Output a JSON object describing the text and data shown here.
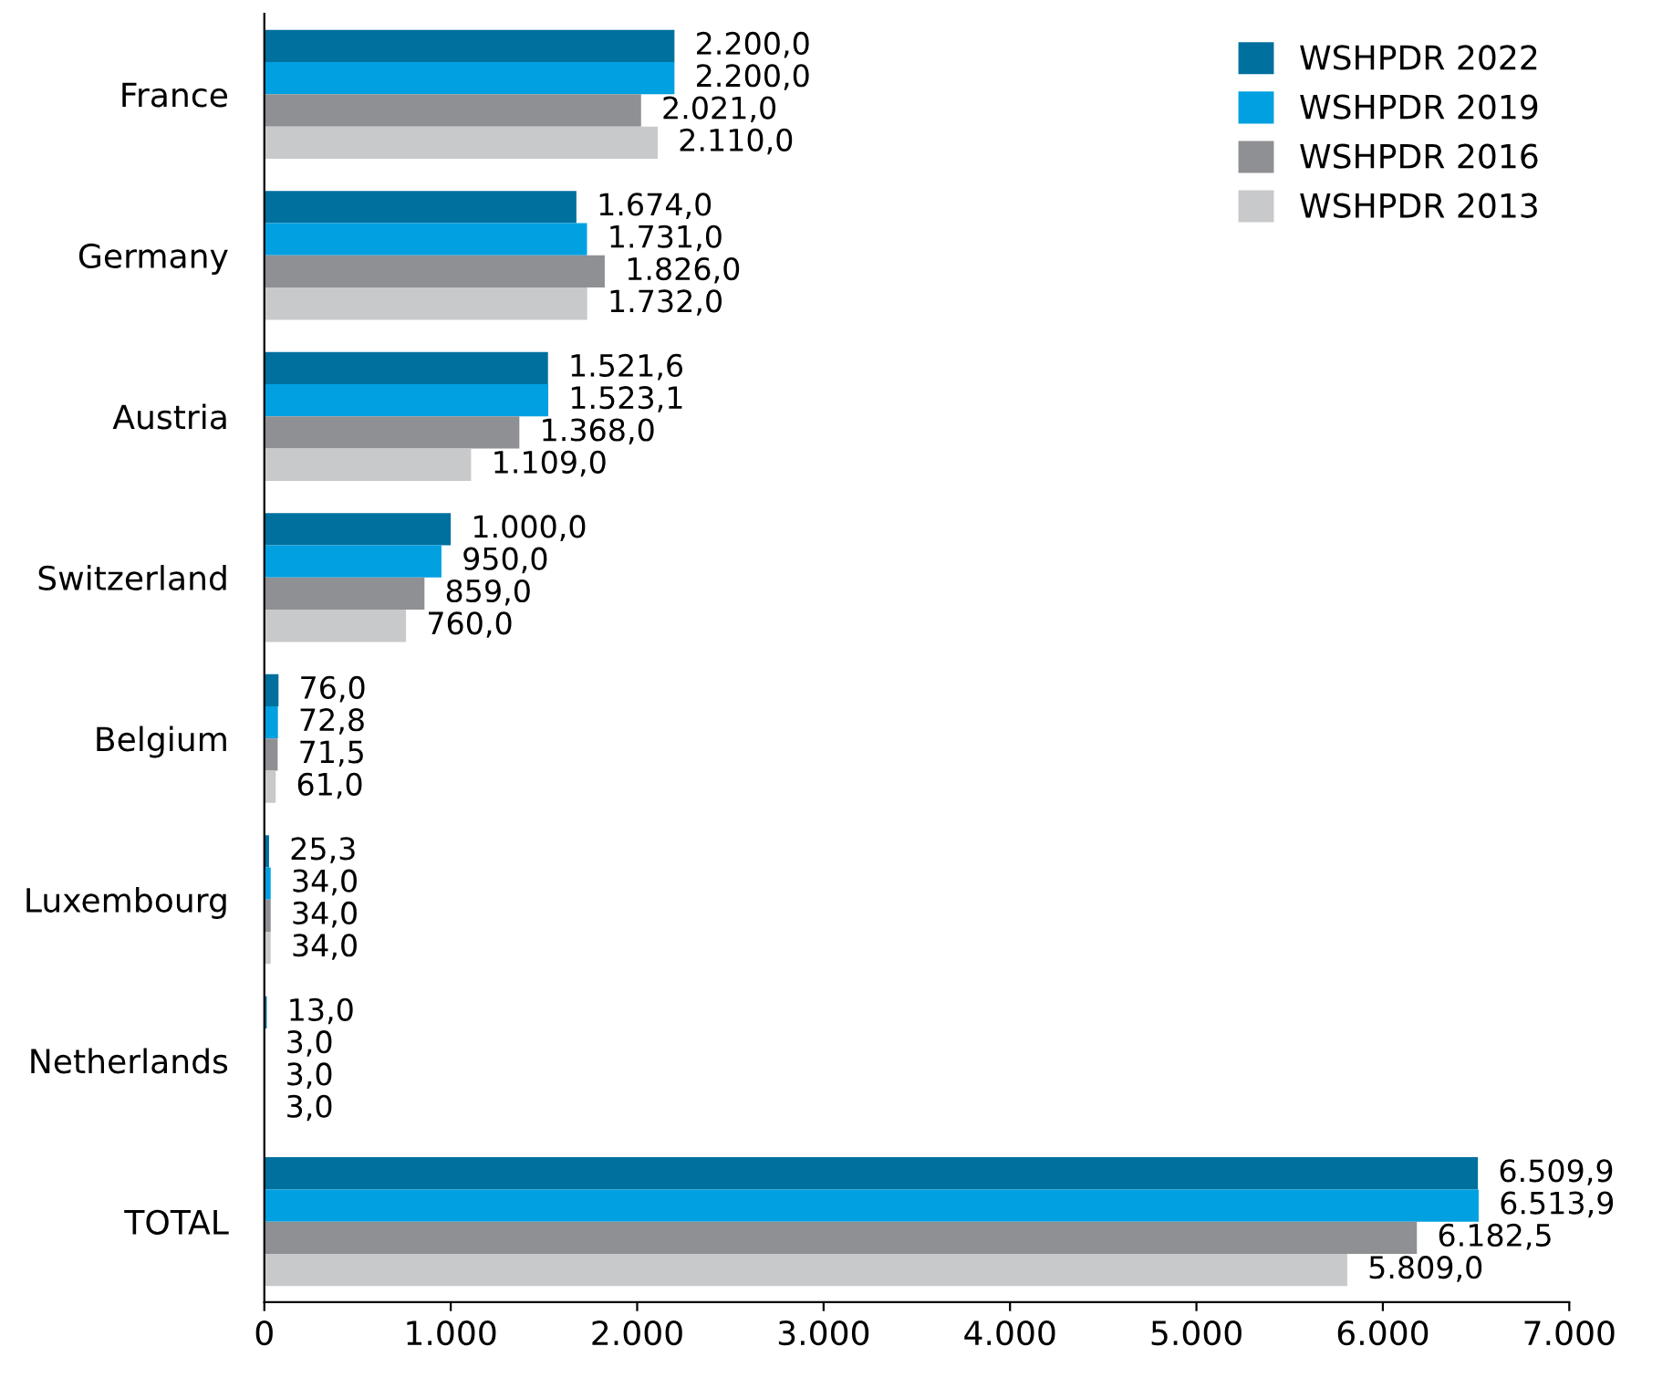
{
  "chart_data": {
    "type": "bar",
    "orientation": "horizontal",
    "categories": [
      "France",
      "Germany",
      "Austria",
      "Switzerland",
      "Belgium",
      "Luxembourg",
      "Netherlands",
      "TOTAL"
    ],
    "series": [
      {
        "name": "WSHPDR 2022",
        "color": "#00709f",
        "values": [
          2200.0,
          1674.0,
          1521.6,
          1000.0,
          76.0,
          25.3,
          13.0,
          6509.9
        ],
        "value_labels": [
          "2.200,0",
          "1.674,0",
          "1.521,6",
          "1.000,0",
          "76,0",
          "25,3",
          "13,0",
          "6.509,9"
        ]
      },
      {
        "name": "WSHPDR 2019",
        "color": "#00a0e1",
        "values": [
          2200.0,
          1731.0,
          1523.1,
          950.0,
          72.8,
          34.0,
          3.0,
          6513.9
        ],
        "value_labels": [
          "2.200,0",
          "1.731,0",
          "1.523,1",
          "950,0",
          "72,8",
          "34,0",
          "3,0",
          "6.513,9"
        ]
      },
      {
        "name": "WSHPDR 2016",
        "color": "#8f9094",
        "values": [
          2021.0,
          1826.0,
          1368.0,
          859.0,
          71.5,
          34.0,
          3.0,
          6182.5
        ],
        "value_labels": [
          "2.021,0",
          "1.826,0",
          "1.368,0",
          "859,0",
          "71,5",
          "34,0",
          "3,0",
          "6.182,5"
        ]
      },
      {
        "name": "WSHPDR 2013",
        "color": "#c8c9cb",
        "values": [
          2110.0,
          1732.0,
          1109.0,
          760.0,
          61.0,
          34.0,
          3.0,
          5809.0
        ],
        "value_labels": [
          "2.110,0",
          "1.732,0",
          "1.109,0",
          "760,0",
          "61,0",
          "34,0",
          "3,0",
          "5.809,0"
        ]
      }
    ],
    "xlim": [
      0,
      7000
    ],
    "xticks": [
      0,
      {
        "value": 1000,
        "label": "1.000"
      },
      {
        "value": 2000,
        "label": "2.000"
      },
      {
        "value": 3000,
        "label": "3.000"
      },
      {
        "value": 4000,
        "label": "4.000"
      },
      {
        "value": 5000,
        "label": "5.000"
      },
      {
        "value": 6000,
        "label": "6.000"
      },
      {
        "value": 7000,
        "label": "7.000"
      }
    ],
    "grid": false,
    "legend": "top right"
  }
}
